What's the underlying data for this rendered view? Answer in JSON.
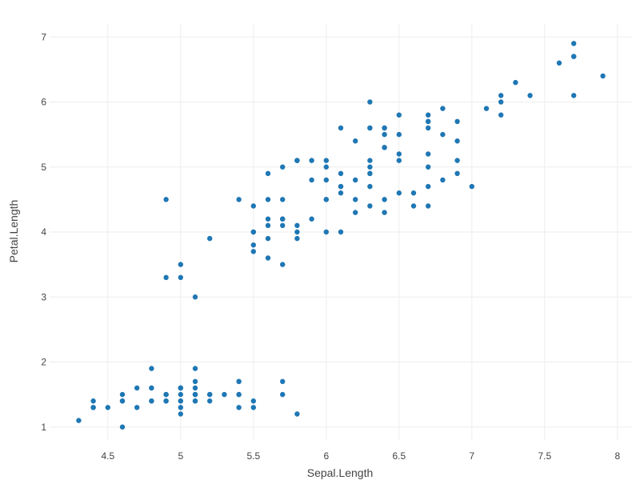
{
  "chart_data": {
    "type": "scatter",
    "xlabel": "Sepal.Length",
    "ylabel": "Petal.Length",
    "xlim": [
      4.1,
      8.1
    ],
    "ylim": [
      0.8,
      7.2
    ],
    "x_ticks": [
      4.5,
      5,
      5.5,
      6,
      6.5,
      7,
      7.5,
      8
    ],
    "y_ticks": [
      1,
      2,
      3,
      4,
      5,
      6,
      7
    ],
    "x_tick_labels": [
      "4.5",
      "5",
      "5.5",
      "6",
      "6.5",
      "7",
      "7.5",
      "8"
    ],
    "y_tick_labels": [
      "1",
      "2",
      "3",
      "4",
      "5",
      "6",
      "7"
    ],
    "grid": true,
    "marker_color": "#1f77b4",
    "points": [
      [
        5.1,
        1.4
      ],
      [
        4.9,
        1.4
      ],
      [
        4.7,
        1.3
      ],
      [
        4.6,
        1.5
      ],
      [
        5.0,
        1.4
      ],
      [
        5.4,
        1.7
      ],
      [
        4.6,
        1.4
      ],
      [
        5.0,
        1.5
      ],
      [
        4.4,
        1.4
      ],
      [
        4.9,
        1.5
      ],
      [
        5.4,
        1.5
      ],
      [
        4.8,
        1.6
      ],
      [
        4.8,
        1.4
      ],
      [
        4.3,
        1.1
      ],
      [
        5.8,
        1.2
      ],
      [
        5.7,
        1.5
      ],
      [
        5.4,
        1.3
      ],
      [
        5.1,
        1.4
      ],
      [
        5.7,
        1.7
      ],
      [
        5.1,
        1.5
      ],
      [
        5.4,
        1.7
      ],
      [
        5.1,
        1.5
      ],
      [
        4.6,
        1.0
      ],
      [
        5.1,
        1.7
      ],
      [
        4.8,
        1.9
      ],
      [
        5.0,
        1.6
      ],
      [
        5.0,
        1.6
      ],
      [
        5.2,
        1.5
      ],
      [
        5.2,
        1.4
      ],
      [
        4.7,
        1.6
      ],
      [
        4.8,
        1.6
      ],
      [
        5.4,
        1.5
      ],
      [
        5.2,
        1.5
      ],
      [
        5.5,
        1.4
      ],
      [
        4.9,
        1.5
      ],
      [
        5.0,
        1.2
      ],
      [
        5.5,
        1.3
      ],
      [
        4.9,
        1.4
      ],
      [
        4.4,
        1.3
      ],
      [
        5.1,
        1.5
      ],
      [
        5.0,
        1.3
      ],
      [
        4.5,
        1.3
      ],
      [
        4.4,
        1.3
      ],
      [
        5.0,
        1.6
      ],
      [
        5.1,
        1.9
      ],
      [
        4.8,
        1.4
      ],
      [
        5.1,
        1.6
      ],
      [
        4.6,
        1.4
      ],
      [
        5.3,
        1.5
      ],
      [
        5.0,
        1.4
      ],
      [
        7.0,
        4.7
      ],
      [
        6.4,
        4.5
      ],
      [
        6.9,
        4.9
      ],
      [
        5.5,
        4.0
      ],
      [
        6.5,
        4.6
      ],
      [
        5.7,
        4.5
      ],
      [
        6.3,
        4.7
      ],
      [
        4.9,
        3.3
      ],
      [
        6.6,
        4.6
      ],
      [
        5.2,
        3.9
      ],
      [
        5.0,
        3.5
      ],
      [
        5.9,
        4.2
      ],
      [
        6.0,
        4.0
      ],
      [
        6.1,
        4.7
      ],
      [
        5.6,
        3.6
      ],
      [
        6.7,
        4.4
      ],
      [
        5.6,
        4.5
      ],
      [
        5.8,
        4.1
      ],
      [
        6.2,
        4.5
      ],
      [
        5.6,
        3.9
      ],
      [
        5.9,
        4.8
      ],
      [
        6.1,
        4.0
      ],
      [
        6.3,
        4.9
      ],
      [
        6.1,
        4.7
      ],
      [
        6.4,
        4.3
      ],
      [
        6.6,
        4.4
      ],
      [
        6.8,
        4.8
      ],
      [
        6.7,
        5.0
      ],
      [
        6.0,
        4.5
      ],
      [
        5.7,
        3.5
      ],
      [
        5.5,
        3.8
      ],
      [
        5.5,
        3.7
      ],
      [
        5.8,
        3.9
      ],
      [
        6.0,
        5.1
      ],
      [
        5.4,
        4.5
      ],
      [
        6.0,
        4.5
      ],
      [
        6.7,
        4.7
      ],
      [
        6.3,
        4.4
      ],
      [
        5.6,
        4.1
      ],
      [
        5.5,
        4.0
      ],
      [
        5.5,
        4.4
      ],
      [
        6.1,
        4.6
      ],
      [
        5.8,
        4.0
      ],
      [
        5.0,
        3.3
      ],
      [
        5.6,
        4.2
      ],
      [
        5.7,
        4.2
      ],
      [
        5.7,
        4.2
      ],
      [
        6.2,
        4.3
      ],
      [
        5.1,
        3.0
      ],
      [
        5.7,
        4.1
      ],
      [
        6.3,
        6.0
      ],
      [
        5.8,
        5.1
      ],
      [
        7.1,
        5.9
      ],
      [
        6.3,
        5.6
      ],
      [
        6.5,
        5.8
      ],
      [
        7.6,
        6.6
      ],
      [
        4.9,
        4.5
      ],
      [
        7.3,
        6.3
      ],
      [
        6.7,
        5.8
      ],
      [
        7.2,
        6.1
      ],
      [
        6.5,
        5.1
      ],
      [
        6.4,
        5.3
      ],
      [
        6.8,
        5.5
      ],
      [
        5.7,
        5.0
      ],
      [
        5.8,
        5.1
      ],
      [
        6.4,
        5.3
      ],
      [
        6.5,
        5.5
      ],
      [
        7.7,
        6.7
      ],
      [
        7.7,
        6.9
      ],
      [
        6.0,
        5.0
      ],
      [
        6.9,
        5.7
      ],
      [
        5.6,
        4.9
      ],
      [
        7.7,
        6.7
      ],
      [
        6.3,
        4.9
      ],
      [
        6.7,
        5.7
      ],
      [
        7.2,
        6.0
      ],
      [
        6.2,
        4.8
      ],
      [
        6.1,
        4.9
      ],
      [
        6.4,
        5.6
      ],
      [
        7.2,
        5.8
      ],
      [
        7.4,
        6.1
      ],
      [
        7.9,
        6.4
      ],
      [
        6.4,
        5.6
      ],
      [
        6.3,
        5.1
      ],
      [
        6.1,
        5.6
      ],
      [
        7.7,
        6.1
      ],
      [
        6.3,
        5.6
      ],
      [
        6.4,
        5.5
      ],
      [
        6.0,
        4.8
      ],
      [
        6.9,
        5.4
      ],
      [
        6.7,
        5.6
      ],
      [
        6.9,
        5.1
      ],
      [
        5.8,
        5.1
      ],
      [
        6.8,
        5.9
      ],
      [
        6.7,
        5.7
      ],
      [
        6.7,
        5.2
      ],
      [
        6.3,
        5.0
      ],
      [
        6.5,
        5.2
      ],
      [
        6.2,
        5.4
      ],
      [
        5.9,
        5.1
      ]
    ]
  }
}
